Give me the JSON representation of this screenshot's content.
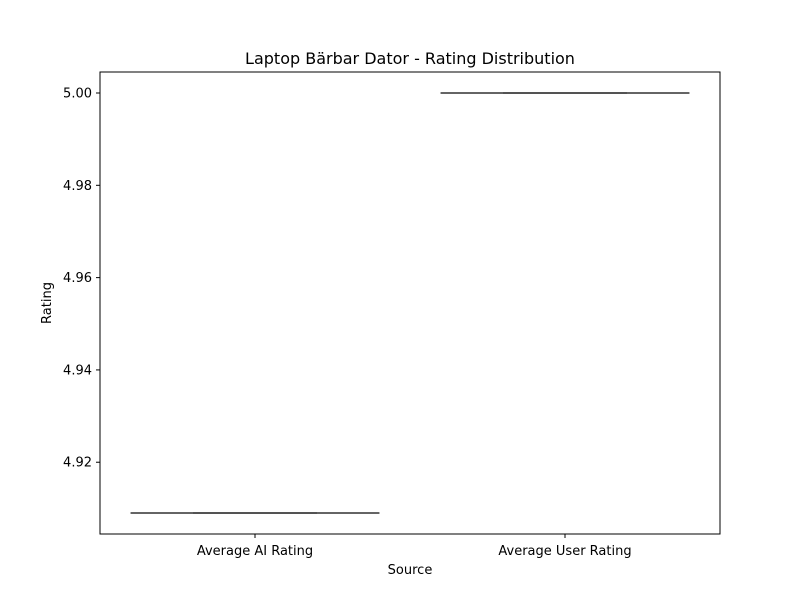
{
  "chart_data": {
    "type": "box",
    "title": "Laptop Bärbar Dator - Rating Distribution",
    "xlabel": "Source",
    "ylabel": "Rating",
    "categories": [
      "Average AI Rating",
      "Average User Rating"
    ],
    "series": [
      {
        "name": "",
        "boxes": [
          {
            "category": "Average AI Rating",
            "min": 4.909,
            "q1": 4.909,
            "median": 4.909,
            "q3": 4.909,
            "max": 4.909
          },
          {
            "category": "Average User Rating",
            "min": 5.0,
            "q1": 5.0,
            "median": 5.0,
            "q3": 5.0,
            "max": 5.0
          }
        ]
      }
    ],
    "ylim": [
      4.90445,
      5.00455
    ],
    "yticks": [
      4.92,
      4.94,
      4.96,
      4.98,
      5.0
    ],
    "ytick_labels": [
      "4.92",
      "4.94",
      "4.96",
      "4.98",
      "5.00"
    ],
    "grid": false,
    "legend": "none",
    "colors": {
      "box_line": "#3f3f3f",
      "axis": "#000000",
      "background": "#ffffff"
    }
  }
}
